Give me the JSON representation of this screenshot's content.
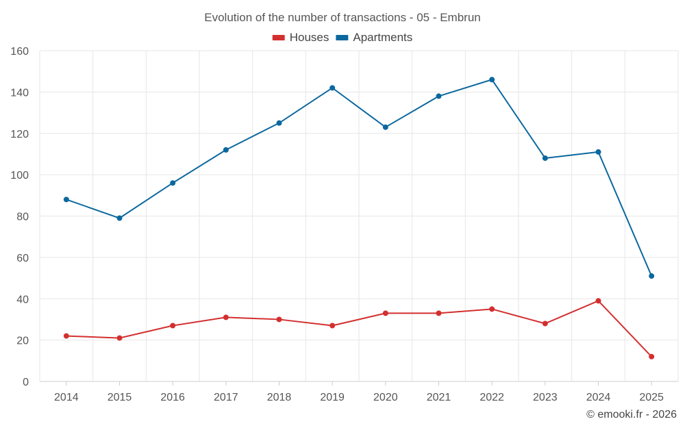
{
  "chart_data": {
    "type": "line",
    "title": "Evolution of the number of transactions - 05 - Embrun",
    "categories": [
      "2014",
      "2015",
      "2016",
      "2017",
      "2018",
      "2019",
      "2020",
      "2021",
      "2022",
      "2023",
      "2024",
      "2025"
    ],
    "series": [
      {
        "name": "Houses",
        "color": "#d32f2f",
        "values": [
          22,
          21,
          27,
          31,
          30,
          27,
          33,
          33,
          35,
          28,
          39,
          12
        ]
      },
      {
        "name": "Apartments",
        "color": "#0b689e",
        "values": [
          88,
          79,
          96,
          112,
          125,
          142,
          123,
          138,
          146,
          108,
          111,
          51
        ]
      }
    ],
    "ylim": [
      0,
      160
    ],
    "yticks": [
      0,
      20,
      40,
      60,
      80,
      100,
      120,
      140,
      160
    ],
    "xlabel": "",
    "ylabel": "",
    "grid": true,
    "legend": "top-center"
  },
  "credit": "© emooki.fr - 2026"
}
